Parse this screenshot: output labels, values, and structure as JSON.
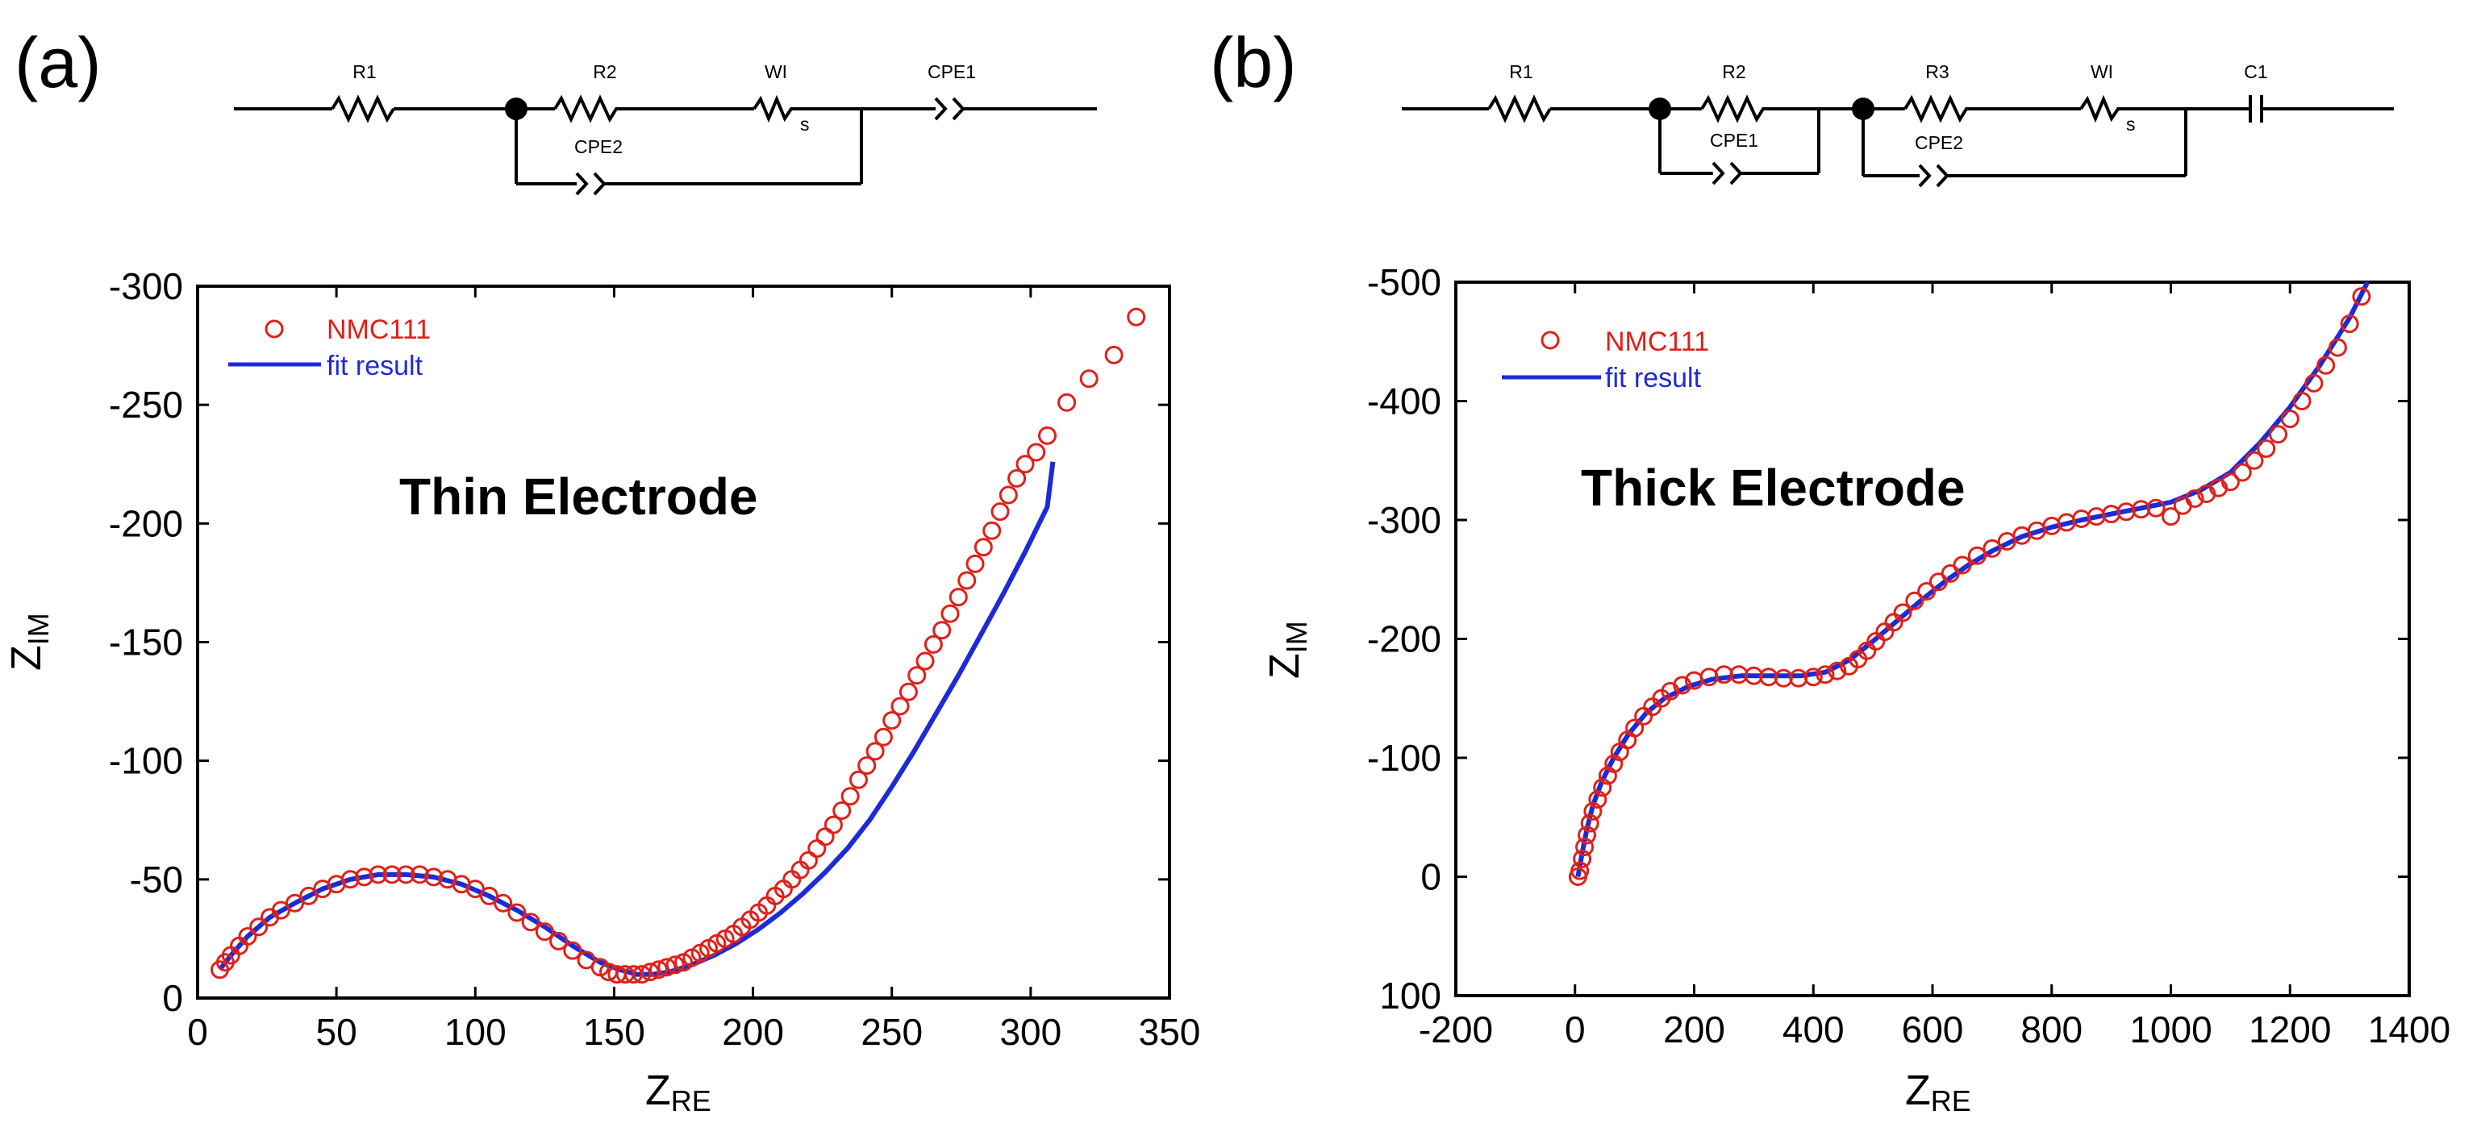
{
  "colors": {
    "data": "#e0201a",
    "fit": "#1d2bd6",
    "axis": "#000000"
  },
  "chart_data": [
    {
      "panel": "(a)",
      "type": "scatter",
      "circuit": {
        "labels": [
          "R1",
          "R2",
          "WI",
          "CPE1",
          "CPE2"
        ],
        "warburg_sub": "s"
      },
      "annotation": "Thin Electrode",
      "xlabel_main": "Z",
      "xlabel_sub": "RE",
      "ylabel_main": "Z",
      "ylabel_sub": "IM",
      "xlim": [
        0,
        350
      ],
      "ylim": [
        0,
        -300
      ],
      "xticks": [
        0,
        50,
        100,
        150,
        200,
        250,
        300,
        350
      ],
      "yticks": [
        0,
        -50,
        -100,
        -150,
        -200,
        -250,
        -300
      ],
      "xtick_labels": [
        "0",
        "50",
        "100",
        "150",
        "200",
        "250",
        "300",
        "350"
      ],
      "ytick_labels": [
        "0",
        "-50",
        "-100",
        "-150",
        "-200",
        "-250",
        "-300"
      ],
      "legend": {
        "position": "top-left",
        "data_label": "NMC111",
        "fit_label": "fit result"
      },
      "series": [
        {
          "name": "NMC111",
          "kind": "markers",
          "x": [
            8,
            10,
            12,
            15,
            18,
            22,
            26,
            30,
            35,
            40,
            45,
            50,
            55,
            60,
            65,
            70,
            75,
            80,
            85,
            90,
            95,
            100,
            105,
            110,
            115,
            120,
            125,
            130,
            135,
            140,
            145,
            148,
            151,
            154,
            157,
            160,
            163,
            166,
            169,
            172,
            175,
            178,
            181,
            184,
            187,
            190,
            193,
            196,
            199,
            202,
            205,
            208,
            211,
            214,
            217,
            220,
            223,
            226,
            229,
            232,
            235,
            238,
            241,
            244,
            247,
            250,
            253,
            256,
            259,
            262,
            265,
            268,
            271,
            274,
            277,
            280,
            283,
            286,
            289,
            292,
            295,
            298,
            302,
            306,
            313,
            321,
            330,
            338
          ],
          "y": [
            -12,
            -15,
            -18,
            -22,
            -26,
            -30,
            -34,
            -37,
            -40,
            -43,
            -46,
            -48,
            -50,
            -51,
            -52,
            -52,
            -52,
            -52,
            -51,
            -50,
            -48,
            -46,
            -43,
            -40,
            -36,
            -32,
            -28,
            -24,
            -20,
            -16,
            -13,
            -11,
            -10,
            -10,
            -10,
            -10,
            -11,
            -12,
            -13,
            -14,
            -15,
            -17,
            -19,
            -21,
            -23,
            -25,
            -27,
            -30,
            -33,
            -36,
            -39,
            -43,
            -46,
            -50,
            -54,
            -58,
            -63,
            -68,
            -73,
            -79,
            -85,
            -92,
            -98,
            -104,
            -110,
            -117,
            -123,
            -129,
            -136,
            -142,
            -149,
            -155,
            -162,
            -169,
            -176,
            -183,
            -190,
            -197,
            -205,
            -212,
            -219,
            -225,
            -230,
            -237,
            -251,
            -261,
            -271,
            -287
          ]
        },
        {
          "name": "fit result",
          "kind": "line",
          "x": [
            8,
            12,
            18,
            26,
            35,
            45,
            55,
            65,
            75,
            85,
            95,
            105,
            115,
            125,
            135,
            145,
            152,
            158,
            164,
            170,
            178,
            186,
            194,
            202,
            210,
            218,
            226,
            234,
            242,
            250,
            258,
            266,
            274,
            282,
            290,
            298,
            306,
            308
          ],
          "y": [
            -12,
            -18,
            -26,
            -34,
            -40,
            -46,
            -50,
            -52,
            -52,
            -51,
            -48,
            -43,
            -37,
            -30,
            -22,
            -15,
            -12,
            -10,
            -10,
            -11,
            -14,
            -18,
            -23,
            -29,
            -36,
            -44,
            -53,
            -63,
            -75,
            -89,
            -104,
            -120,
            -136,
            -153,
            -170,
            -188,
            -207,
            -226
          ]
        }
      ]
    },
    {
      "panel": "(b)",
      "type": "scatter",
      "circuit": {
        "labels": [
          "R1",
          "R2",
          "R3",
          "WI",
          "C1",
          "CPE1",
          "CPE2"
        ],
        "warburg_sub": "s"
      },
      "annotation": "Thick Electrode",
      "xlabel_main": "Z",
      "xlabel_sub": "RE",
      "ylabel_main": "Z",
      "ylabel_sub": "IM",
      "xlim": [
        -200,
        1400
      ],
      "ylim": [
        100,
        -500
      ],
      "xticks": [
        -200,
        0,
        200,
        400,
        600,
        800,
        1000,
        1200,
        1400
      ],
      "yticks": [
        100,
        0,
        -100,
        -200,
        -300,
        -400,
        -500
      ],
      "xtick_labels": [
        "-200",
        "0",
        "200",
        "400",
        "600",
        "800",
        "1000",
        "1200",
        "1400"
      ],
      "ytick_labels": [
        "100",
        "0",
        "-100",
        "-200",
        "-300",
        "-400",
        "-500"
      ],
      "legend": {
        "position": "top-left",
        "data_label": "NMC111",
        "fit_label": "fit result"
      },
      "series": [
        {
          "name": "NMC111",
          "kind": "markers",
          "x": [
            5,
            8,
            12,
            16,
            20,
            25,
            30,
            38,
            46,
            55,
            65,
            75,
            88,
            100,
            115,
            130,
            145,
            160,
            180,
            200,
            225,
            250,
            275,
            300,
            325,
            350,
            375,
            400,
            420,
            440,
            460,
            475,
            490,
            505,
            520,
            535,
            550,
            570,
            590,
            610,
            630,
            650,
            675,
            700,
            725,
            750,
            775,
            800,
            825,
            850,
            875,
            900,
            925,
            950,
            975,
            1000,
            1020,
            1040,
            1060,
            1080,
            1100,
            1120,
            1140,
            1160,
            1180,
            1200,
            1220,
            1240,
            1260,
            1280,
            1300,
            1320
          ],
          "y": [
            0,
            -5,
            -15,
            -25,
            -35,
            -45,
            -55,
            -65,
            -75,
            -85,
            -95,
            -105,
            -115,
            -125,
            -135,
            -143,
            -150,
            -156,
            -161,
            -165,
            -168,
            -170,
            -170,
            -169,
            -168,
            -167,
            -167,
            -168,
            -170,
            -173,
            -177,
            -183,
            -190,
            -198,
            -206,
            -214,
            -222,
            -232,
            -240,
            -248,
            -255,
            -262,
            -270,
            -276,
            -282,
            -287,
            -291,
            -295,
            -298,
            -301,
            -303,
            -305,
            -307,
            -309,
            -310,
            -303,
            -312,
            -318,
            -322,
            -327,
            -332,
            -340,
            -350,
            -360,
            -372,
            -385,
            -400,
            -415,
            -430,
            -445,
            -465,
            -488
          ]
        },
        {
          "name": "fit result",
          "kind": "line",
          "x": [
            5,
            12,
            20,
            30,
            45,
            65,
            90,
            120,
            150,
            190,
            230,
            280,
            330,
            380,
            420,
            460,
            500,
            540,
            580,
            620,
            660,
            700,
            750,
            800,
            850,
            900,
            950,
            1000,
            1050,
            1100,
            1150,
            1200,
            1250,
            1300,
            1330
          ],
          "y": [
            0,
            -20,
            -40,
            -60,
            -80,
            -100,
            -120,
            -138,
            -150,
            -160,
            -166,
            -169,
            -169,
            -169,
            -172,
            -182,
            -198,
            -215,
            -232,
            -248,
            -262,
            -274,
            -286,
            -294,
            -300,
            -305,
            -310,
            -315,
            -325,
            -340,
            -365,
            -395,
            -430,
            -470,
            -500
          ]
        }
      ]
    }
  ]
}
